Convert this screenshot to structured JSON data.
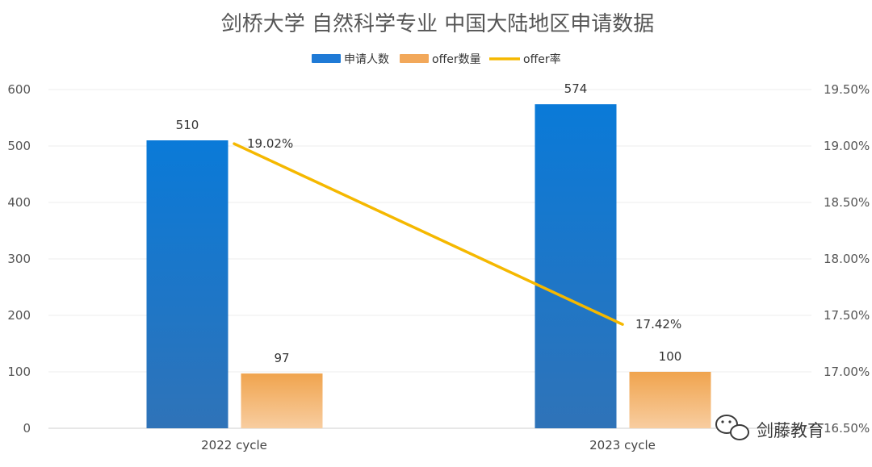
{
  "chart_data": {
    "type": "bar",
    "title": "剑桥大学 自然科学专业 中国大陆地区申请数据",
    "categories": [
      "2022 cycle",
      "2023 cycle"
    ],
    "series": [
      {
        "name": "申请人数",
        "kind": "bar",
        "axis": "left",
        "values": [
          510,
          574
        ],
        "color": "#1f7ad6"
      },
      {
        "name": "offer数量",
        "kind": "bar",
        "axis": "left",
        "values": [
          97,
          100
        ],
        "color": "#f2a85a"
      },
      {
        "name": "offer率",
        "kind": "line",
        "axis": "right",
        "values": [
          19.02,
          17.42
        ],
        "color": "#f5b800"
      }
    ],
    "data_labels": {
      "申请人数": [
        "510",
        "574"
      ],
      "offer数量": [
        "97",
        "100"
      ],
      "offer率": [
        "19.02%",
        "17.42%"
      ]
    },
    "y_left": {
      "min": 0,
      "max": 600,
      "ticks": [
        "0",
        "100",
        "200",
        "300",
        "400",
        "500",
        "600"
      ]
    },
    "y_right": {
      "min": 16.5,
      "max": 19.5,
      "ticks": [
        "16.50%",
        "17.00%",
        "17.50%",
        "18.00%",
        "18.50%",
        "19.00%",
        "19.50%"
      ]
    },
    "xlabel": "",
    "ylabel": "",
    "grid": true,
    "legend_position": "top-center"
  },
  "watermark": {
    "text": "剑藤教育",
    "icon": "wechat-icon"
  }
}
